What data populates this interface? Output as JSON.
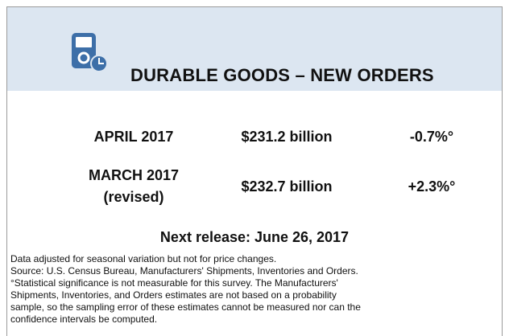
{
  "header": {
    "title": "DURABLE GOODS – NEW ORDERS"
  },
  "rows": [
    {
      "period": "APRIL 2017",
      "value": "$231.2 billion",
      "change": "-0.7%°"
    },
    {
      "period": "MARCH 2017",
      "period_note": "(revised)",
      "value": "$232.7 billion",
      "change": "+2.3%°"
    }
  ],
  "next_release": "Next release: June 26, 2017",
  "footnotes": [
    "Data adjusted for seasonal variation but not for price changes.",
    "Source: U.S. Census Bureau, Manufacturers' Shipments, Inventories and Orders.",
    "°Statistical significance is not measurable for this survey.  The Manufacturers'",
    "Shipments, Inventories, and Orders estimates are not based on a probability",
    "sample, so the sampling error of these estimates cannot be measured nor can the",
    "confidence intervals be computed."
  ]
}
